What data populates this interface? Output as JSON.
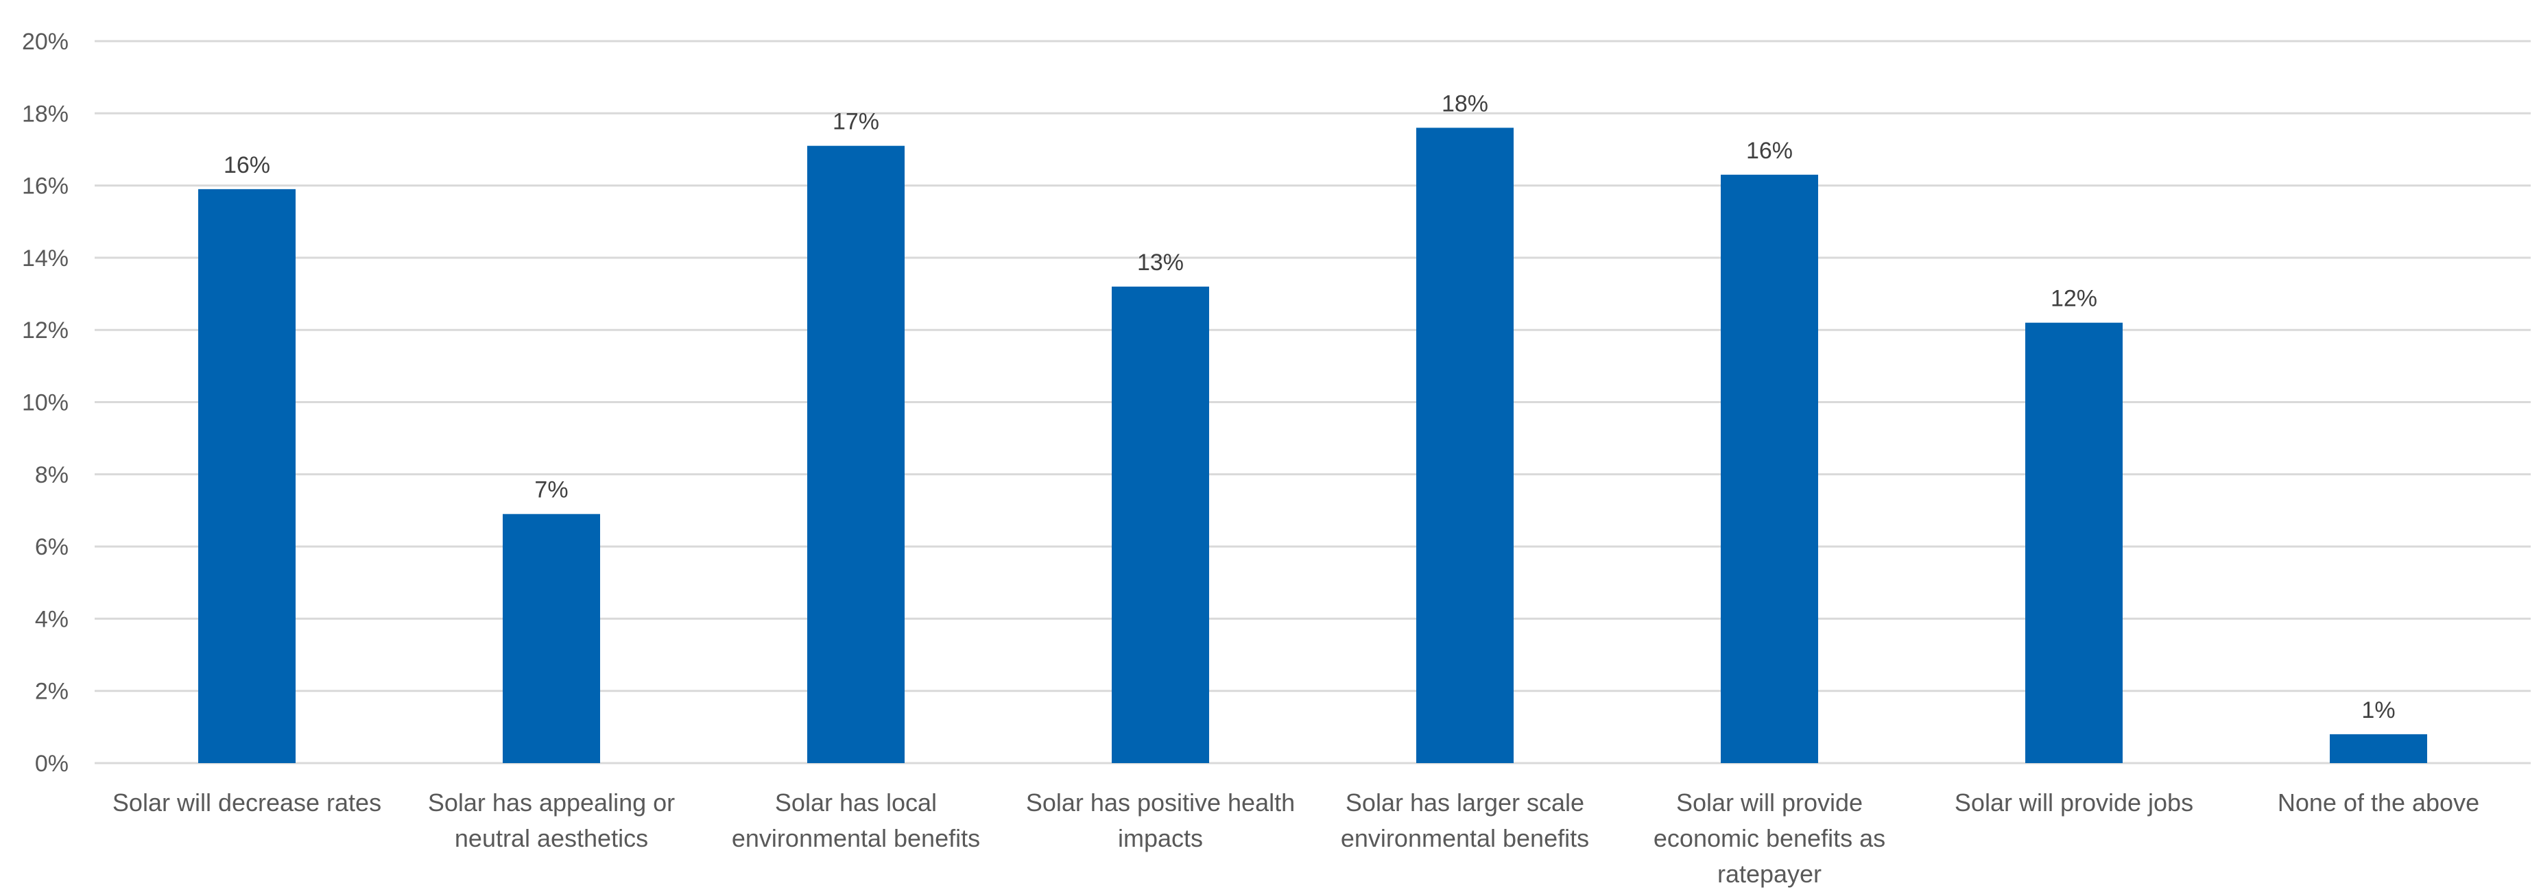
{
  "chart_data": {
    "type": "bar",
    "title": "",
    "xlabel": "",
    "ylabel": "",
    "categories": [
      [
        "Solar will decrease rates"
      ],
      [
        "Solar has appealing or",
        "neutral aesthetics"
      ],
      [
        "Solar has local",
        "environmental benefits"
      ],
      [
        "Solar has positive health",
        "impacts"
      ],
      [
        "Solar has larger scale",
        "environmental benefits"
      ],
      [
        "Solar will provide",
        "economic benefits as",
        "ratepayer"
      ],
      [
        "Solar will provide jobs"
      ],
      [
        "None of the above"
      ]
    ],
    "values": [
      15.9,
      6.9,
      17.1,
      13.2,
      17.6,
      16.3,
      12.2,
      0.8
    ],
    "data_labels": [
      "16%",
      "7%",
      "17%",
      "13%",
      "18%",
      "16%",
      "12%",
      "1%"
    ],
    "ylim": [
      0,
      20
    ],
    "yticks": [
      0,
      2,
      4,
      6,
      8,
      10,
      12,
      14,
      16,
      18,
      20
    ],
    "ytick_labels": [
      "0%",
      "2%",
      "4%",
      "6%",
      "8%",
      "10%",
      "12%",
      "14%",
      "16%",
      "18%",
      "20%"
    ],
    "bar_color": "#0063b1",
    "grid": true,
    "legend": "none"
  }
}
